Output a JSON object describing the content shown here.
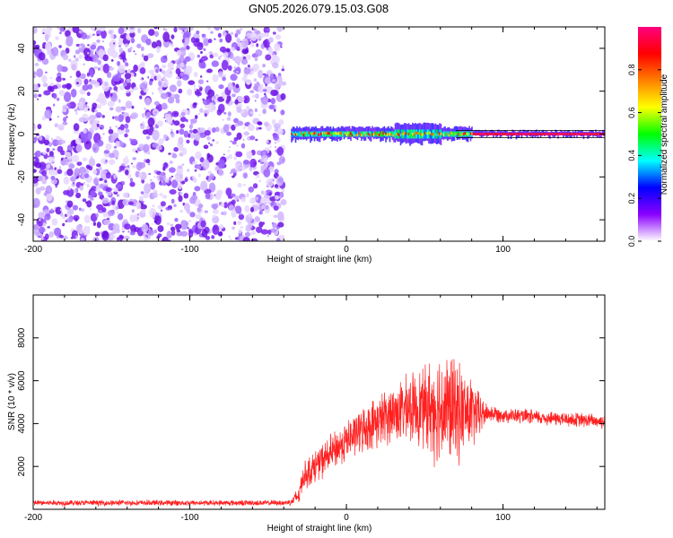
{
  "title": "GN05.2026.079.15.03.G08",
  "colors": {
    "noise_purple": "#7a22f0",
    "snr_line": "#ff2020",
    "axis": "#000000"
  },
  "chart_data": [
    {
      "type": "heatmap",
      "name": "spectrogram",
      "title": "GN05.2026.079.15.03.G08",
      "xlabel": "Height of straight line (km)",
      "ylabel": "Frequency (Hz)",
      "xlim": [
        -200,
        165
      ],
      "ylim": [
        -50,
        50
      ],
      "xticks": [
        -200,
        -100,
        0,
        100
      ],
      "yticks": [
        -40,
        -20,
        0,
        20,
        40
      ],
      "noise_region": [
        -200,
        -40
      ],
      "signal_region": [
        -40,
        165
      ],
      "signal_frequency_hz": 0,
      "colorbar": {
        "label": "Normalized spectral amplitude",
        "range": [
          0,
          1
        ],
        "ticks": [
          "0.0",
          "0.2",
          "0.4",
          "0.6",
          "0.8"
        ],
        "tick_values": [
          0,
          0.2,
          0.4,
          0.6,
          0.8
        ],
        "colormap": [
          "#ffffff",
          "#8a00ff",
          "#0000ff",
          "#00ffff",
          "#00ff00",
          "#ffff00",
          "#ff8000",
          "#ff0000",
          "#ff0080"
        ]
      }
    },
    {
      "type": "line",
      "name": "snr",
      "xlabel": "Height of straight line (km)",
      "ylabel": "SNR (10 * v/v)",
      "xlim": [
        -200,
        165
      ],
      "ylim": [
        0,
        10000
      ],
      "xticks": [
        -200,
        -100,
        0,
        100
      ],
      "yticks": [
        2000,
        4000,
        6000,
        8000
      ],
      "series": [
        {
          "name": "SNR",
          "color": "#ff2020",
          "x": [
            -200,
            -150,
            -100,
            -60,
            -40,
            -35,
            -30,
            -28,
            -25,
            -20,
            -10,
            0,
            10,
            20,
            30,
            40,
            50,
            55,
            60,
            65,
            70,
            75,
            80,
            85,
            90,
            100,
            120,
            140,
            165
          ],
          "y": [
            300,
            300,
            300,
            300,
            300,
            350,
            700,
            1500,
            1700,
            2000,
            2600,
            3200,
            3700,
            4100,
            4500,
            4700,
            4800,
            4700,
            4800,
            4700,
            4600,
            4500,
            4500,
            4400,
            4500,
            4400,
            4300,
            4200,
            4100
          ],
          "spread": [
            150,
            150,
            150,
            150,
            150,
            200,
            600,
            700,
            800,
            900,
            1000,
            1100,
            1200,
            1400,
            1600,
            1800,
            2200,
            2800,
            3200,
            3000,
            2800,
            2400,
            2000,
            1200,
            500,
            400,
            400,
            400,
            400
          ]
        }
      ]
    }
  ]
}
